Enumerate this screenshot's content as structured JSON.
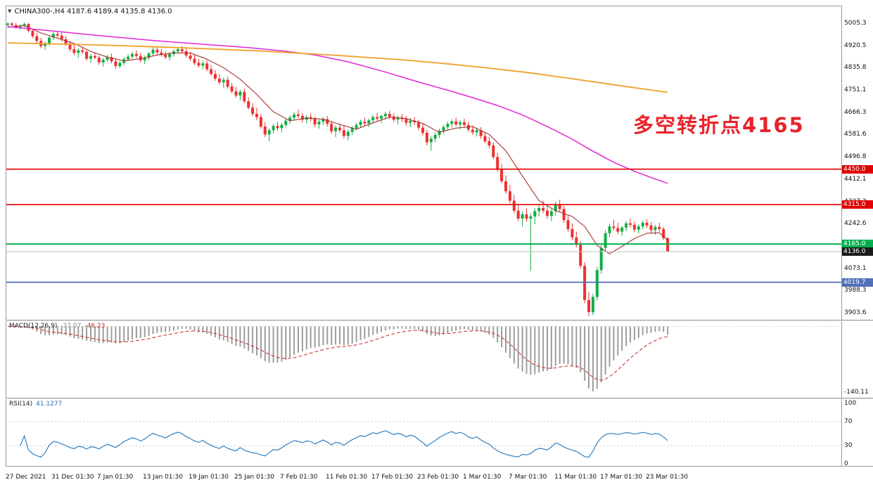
{
  "main_chart": {
    "header_icon": "▼",
    "header_text": "CHINA300-,H4 4187.6 4189.4 4135.8 4136.0",
    "annotation": {
      "text": "多空转折点4165",
      "color": "#e8232b"
    },
    "levels": [
      {
        "price": 4450.0,
        "label": "4450.0",
        "color": "#e00000",
        "width": 1.6
      },
      {
        "price": 4315.0,
        "label": "4315.0",
        "color": "#e00000",
        "width": 1.6
      },
      {
        "price": 4165.0,
        "label": "4165.0",
        "color": "#00b050",
        "width": 2
      },
      {
        "price": 4019.7,
        "label": "4019.7",
        "color": "#4f6fb8",
        "width": 1.8
      }
    ],
    "current_price": {
      "value": 4136.0,
      "label": "4136.0",
      "line_color": "#c0c0c0",
      "badge_color": "#1a1a1a"
    }
  },
  "chart_data": {
    "type": "candlestick",
    "title": "CHINA300-,H4",
    "y_range": [
      3877,
      5072
    ],
    "up_color": "#12ad46",
    "down_color": "#ef3030",
    "y_axis_labels": [
      "5005.3",
      "4920.5",
      "4835.8",
      "4751.1",
      "4666.3",
      "4581.6",
      "4496.8",
      "4412.1",
      "4327.3",
      "4242.6",
      "4157.8",
      "4073.1",
      "3988.3",
      "3903.6"
    ],
    "x_labels": [
      "27 Dec 2021",
      "31 Dec 01:30",
      "7 Jan 01:30",
      "13 Jan 01:30",
      "19 Jan 01:30",
      "25 Jan 01:30",
      "7 Feb 01:30",
      "11 Feb 01:30",
      "17 Feb 01:30",
      "23 Feb 01:30",
      "1 Mar 01:30",
      "7 Mar 01:30",
      "11 Mar 01:30",
      "17 Mar 01:30",
      "23 Mar 01:30"
    ],
    "candles": [
      [
        4998,
        5008,
        4988,
        5004
      ],
      [
        5004,
        5010,
        4994,
        4998
      ],
      [
        4998,
        5006,
        4984,
        4990
      ],
      [
        4990,
        5002,
        4980,
        4996
      ],
      [
        4996,
        5008,
        4990,
        5002
      ],
      [
        5002,
        5006,
        4970,
        4976
      ],
      [
        4976,
        4984,
        4948,
        4956
      ],
      [
        4956,
        4968,
        4930,
        4938
      ],
      [
        4938,
        4950,
        4910,
        4918
      ],
      [
        4918,
        4936,
        4904,
        4928
      ],
      [
        4928,
        4956,
        4920,
        4950
      ],
      [
        4950,
        4972,
        4942,
        4964
      ],
      [
        4964,
        4976,
        4950,
        4958
      ],
      [
        4958,
        4970,
        4936,
        4944
      ],
      [
        4944,
        4956,
        4920,
        4928
      ],
      [
        4928,
        4938,
        4898,
        4906
      ],
      [
        4906,
        4922,
        4884,
        4892
      ],
      [
        4892,
        4910,
        4874,
        4902
      ],
      [
        4902,
        4916,
        4888,
        4896
      ],
      [
        4896,
        4902,
        4862,
        4870
      ],
      [
        4870,
        4888,
        4854,
        4880
      ],
      [
        4880,
        4894,
        4868,
        4874
      ],
      [
        4874,
        4882,
        4846,
        4856
      ],
      [
        4856,
        4874,
        4840,
        4866
      ],
      [
        4866,
        4884,
        4858,
        4876
      ],
      [
        4876,
        4890,
        4852,
        4860
      ],
      [
        4860,
        4872,
        4830,
        4842
      ],
      [
        4842,
        4862,
        4834,
        4854
      ],
      [
        4854,
        4876,
        4846,
        4868
      ],
      [
        4868,
        4886,
        4860,
        4878
      ],
      [
        4878,
        4896,
        4868,
        4888
      ],
      [
        4888,
        4902,
        4872,
        4880
      ],
      [
        4880,
        4892,
        4856,
        4864
      ],
      [
        4864,
        4882,
        4850,
        4874
      ],
      [
        4874,
        4896,
        4866,
        4890
      ],
      [
        4890,
        4912,
        4882,
        4904
      ],
      [
        4904,
        4916,
        4884,
        4894
      ],
      [
        4894,
        4908,
        4878,
        4886
      ],
      [
        4886,
        4898,
        4868,
        4876
      ],
      [
        4876,
        4894,
        4864,
        4888
      ],
      [
        4888,
        4906,
        4878,
        4898
      ],
      [
        4898,
        4914,
        4888,
        4906
      ],
      [
        4906,
        4918,
        4890,
        4898
      ],
      [
        4898,
        4908,
        4874,
        4882
      ],
      [
        4882,
        4896,
        4862,
        4870
      ],
      [
        4870,
        4884,
        4846,
        4854
      ],
      [
        4854,
        4870,
        4836,
        4844
      ],
      [
        4844,
        4862,
        4830,
        4852
      ],
      [
        4852,
        4864,
        4822,
        4830
      ],
      [
        4830,
        4846,
        4806,
        4812
      ],
      [
        4812,
        4826,
        4786,
        4794
      ],
      [
        4794,
        4812,
        4772,
        4780
      ],
      [
        4780,
        4798,
        4760,
        4790
      ],
      [
        4790,
        4802,
        4756,
        4764
      ],
      [
        4764,
        4778,
        4738,
        4746
      ],
      [
        4746,
        4762,
        4722,
        4730
      ],
      [
        4730,
        4752,
        4712,
        4744
      ],
      [
        4744,
        4756,
        4700,
        4708
      ],
      [
        4708,
        4722,
        4676,
        4684
      ],
      [
        4684,
        4700,
        4652,
        4660
      ],
      [
        4660,
        4684,
        4636,
        4648
      ],
      [
        4648,
        4660,
        4604,
        4612
      ],
      [
        4612,
        4630,
        4572,
        4582
      ],
      [
        4582,
        4606,
        4556,
        4598
      ],
      [
        4598,
        4622,
        4586,
        4614
      ],
      [
        4614,
        4630,
        4596,
        4606
      ],
      [
        4606,
        4626,
        4590,
        4618
      ],
      [
        4618,
        4642,
        4608,
        4634
      ],
      [
        4634,
        4654,
        4622,
        4646
      ],
      [
        4646,
        4668,
        4636,
        4658
      ],
      [
        4658,
        4676,
        4644,
        4652
      ],
      [
        4652,
        4664,
        4628,
        4638
      ],
      [
        4638,
        4656,
        4624,
        4648
      ],
      [
        4648,
        4662,
        4632,
        4642
      ],
      [
        4642,
        4650,
        4610,
        4620
      ],
      [
        4620,
        4638,
        4604,
        4630
      ],
      [
        4630,
        4648,
        4618,
        4640
      ],
      [
        4640,
        4652,
        4612,
        4622
      ],
      [
        4622,
        4632,
        4584,
        4594
      ],
      [
        4594,
        4616,
        4572,
        4608
      ],
      [
        4608,
        4624,
        4588,
        4598
      ],
      [
        4598,
        4614,
        4566,
        4576
      ],
      [
        4576,
        4600,
        4560,
        4592
      ],
      [
        4592,
        4614,
        4580,
        4606
      ],
      [
        4606,
        4626,
        4596,
        4618
      ],
      [
        4618,
        4638,
        4608,
        4630
      ],
      [
        4630,
        4646,
        4614,
        4624
      ],
      [
        4624,
        4642,
        4610,
        4636
      ],
      [
        4636,
        4656,
        4624,
        4648
      ],
      [
        4648,
        4664,
        4634,
        4642
      ],
      [
        4642,
        4658,
        4626,
        4652
      ],
      [
        4652,
        4668,
        4638,
        4660
      ],
      [
        4660,
        4672,
        4640,
        4650
      ],
      [
        4650,
        4662,
        4628,
        4638
      ],
      [
        4638,
        4654,
        4620,
        4646
      ],
      [
        4646,
        4660,
        4630,
        4640
      ],
      [
        4640,
        4652,
        4616,
        4626
      ],
      [
        4626,
        4644,
        4610,
        4634
      ],
      [
        4634,
        4648,
        4618,
        4628
      ],
      [
        4628,
        4638,
        4598,
        4608
      ],
      [
        4608,
        4622,
        4578,
        4588
      ],
      [
        4588,
        4600,
        4540,
        4552
      ],
      [
        4552,
        4576,
        4520,
        4566
      ],
      [
        4566,
        4590,
        4552,
        4580
      ],
      [
        4580,
        4604,
        4568,
        4596
      ],
      [
        4596,
        4618,
        4584,
        4610
      ],
      [
        4610,
        4630,
        4596,
        4622
      ],
      [
        4622,
        4640,
        4608,
        4632
      ],
      [
        4632,
        4646,
        4612,
        4620
      ],
      [
        4620,
        4636,
        4602,
        4628
      ],
      [
        4628,
        4642,
        4610,
        4618
      ],
      [
        4618,
        4630,
        4592,
        4600
      ],
      [
        4600,
        4616,
        4580,
        4590
      ],
      [
        4590,
        4608,
        4574,
        4598
      ],
      [
        4598,
        4610,
        4566,
        4576
      ],
      [
        4576,
        4590,
        4548,
        4556
      ],
      [
        4556,
        4572,
        4530,
        4540
      ],
      [
        4540,
        4552,
        4488,
        4496
      ],
      [
        4496,
        4512,
        4440,
        4450
      ],
      [
        4450,
        4468,
        4396,
        4404
      ],
      [
        4404,
        4426,
        4356,
        4366
      ],
      [
        4366,
        4390,
        4320,
        4330
      ],
      [
        4330,
        4352,
        4282,
        4292
      ],
      [
        4292,
        4318,
        4252,
        4262
      ],
      [
        4262,
        4290,
        4232,
        4278
      ],
      [
        4278,
        4300,
        4250,
        4262
      ],
      [
        4262,
        4282,
        4062,
        4270
      ],
      [
        4270,
        4302,
        4240,
        4290
      ],
      [
        4290,
        4318,
        4270,
        4302
      ],
      [
        4302,
        4330,
        4282,
        4292
      ],
      [
        4292,
        4312,
        4262,
        4272
      ],
      [
        4272,
        4300,
        4252,
        4290
      ],
      [
        4290,
        4326,
        4274,
        4316
      ],
      [
        4316,
        4334,
        4288,
        4298
      ],
      [
        4298,
        4310,
        4246,
        4256
      ],
      [
        4256,
        4274,
        4212,
        4222
      ],
      [
        4222,
        4244,
        4180,
        4190
      ],
      [
        4190,
        4212,
        4152,
        4162
      ],
      [
        4162,
        4176,
        4072,
        4082
      ],
      [
        4082,
        4096,
        3940,
        3952
      ],
      [
        3952,
        3982,
        3890,
        3906
      ],
      [
        3906,
        3976,
        3894,
        3964
      ],
      [
        3964,
        4078,
        3950,
        4066
      ],
      [
        4066,
        4162,
        4052,
        4150
      ],
      [
        4150,
        4218,
        4140,
        4206
      ],
      [
        4206,
        4242,
        4192,
        4232
      ],
      [
        4232,
        4258,
        4216,
        4226
      ],
      [
        4226,
        4246,
        4202,
        4212
      ],
      [
        4212,
        4234,
        4196,
        4228
      ],
      [
        4228,
        4252,
        4214,
        4244
      ],
      [
        4244,
        4262,
        4228,
        4238
      ],
      [
        4238,
        4250,
        4210,
        4220
      ],
      [
        4220,
        4240,
        4206,
        4232
      ],
      [
        4232,
        4254,
        4220,
        4246
      ],
      [
        4246,
        4260,
        4226,
        4236
      ],
      [
        4236,
        4248,
        4208,
        4218
      ],
      [
        4218,
        4238,
        4200,
        4230
      ],
      [
        4230,
        4246,
        4212,
        4222
      ],
      [
        4222,
        4230,
        4180,
        4187.6
      ],
      [
        4187.6,
        4189.4,
        4135.8,
        4136.0
      ]
    ],
    "moving_averages": [
      {
        "name": "ma-fast",
        "color": "#a83232",
        "width": 1.1,
        "points": [
          [
            0,
            4990
          ],
          [
            4,
            4996
          ],
          [
            8,
            4968
          ],
          [
            12,
            4948
          ],
          [
            16,
            4928
          ],
          [
            20,
            4898
          ],
          [
            24,
            4876
          ],
          [
            28,
            4862
          ],
          [
            32,
            4870
          ],
          [
            36,
            4884
          ],
          [
            40,
            4892
          ],
          [
            44,
            4892
          ],
          [
            48,
            4868
          ],
          [
            52,
            4836
          ],
          [
            56,
            4792
          ],
          [
            60,
            4734
          ],
          [
            64,
            4668
          ],
          [
            68,
            4634
          ],
          [
            72,
            4644
          ],
          [
            76,
            4640
          ],
          [
            80,
            4620
          ],
          [
            84,
            4602
          ],
          [
            88,
            4626
          ],
          [
            92,
            4648
          ],
          [
            96,
            4642
          ],
          [
            100,
            4624
          ],
          [
            104,
            4590
          ],
          [
            108,
            4606
          ],
          [
            112,
            4612
          ],
          [
            116,
            4582
          ],
          [
            120,
            4520
          ],
          [
            124,
            4424
          ],
          [
            128,
            4330
          ],
          [
            132,
            4292
          ],
          [
            136,
            4270
          ],
          [
            139,
            4232
          ],
          [
            142,
            4160
          ],
          [
            145,
            4128
          ],
          [
            148,
            4156
          ],
          [
            151,
            4186
          ],
          [
            154,
            4206
          ],
          [
            157,
            4208
          ],
          [
            159,
            4180
          ]
        ]
      },
      {
        "name": "ma-mid",
        "color": "#e326d6",
        "width": 1.5,
        "points": [
          [
            0,
            4992
          ],
          [
            12,
            4974
          ],
          [
            24,
            4955
          ],
          [
            36,
            4938
          ],
          [
            48,
            4924
          ],
          [
            58,
            4912
          ],
          [
            66,
            4900
          ],
          [
            74,
            4884
          ],
          [
            82,
            4858
          ],
          [
            90,
            4824
          ],
          [
            98,
            4786
          ],
          [
            106,
            4750
          ],
          [
            112,
            4722
          ],
          [
            118,
            4692
          ],
          [
            124,
            4656
          ],
          [
            130,
            4612
          ],
          [
            136,
            4564
          ],
          [
            141,
            4518
          ],
          [
            146,
            4476
          ],
          [
            151,
            4442
          ],
          [
            155,
            4418
          ],
          [
            159,
            4396
          ]
        ]
      },
      {
        "name": "ma-slow",
        "color": "#efa433",
        "width": 1.9,
        "points": [
          [
            0,
            4930
          ],
          [
            20,
            4923
          ],
          [
            40,
            4913
          ],
          [
            60,
            4900
          ],
          [
            80,
            4882
          ],
          [
            95,
            4866
          ],
          [
            105,
            4852
          ],
          [
            115,
            4836
          ],
          [
            125,
            4818
          ],
          [
            135,
            4796
          ],
          [
            143,
            4778
          ],
          [
            150,
            4762
          ],
          [
            159,
            4742
          ]
        ]
      }
    ],
    "indicators": [
      {
        "type": "macd",
        "label": "MACD(12,26,9)",
        "v1": "-37.07",
        "v2": "-46.23",
        "params": [
          12,
          26,
          9
        ],
        "scale_label": "-140.11",
        "histogram_color": "#9c9c9c",
        "signal_color": "#cc2626"
      },
      {
        "type": "rsi",
        "label": "RSI(14)",
        "value": "41.1277",
        "params": [
          14
        ],
        "levels": [
          100,
          70,
          30,
          0
        ],
        "line_color": "#2f7fc1"
      }
    ]
  }
}
